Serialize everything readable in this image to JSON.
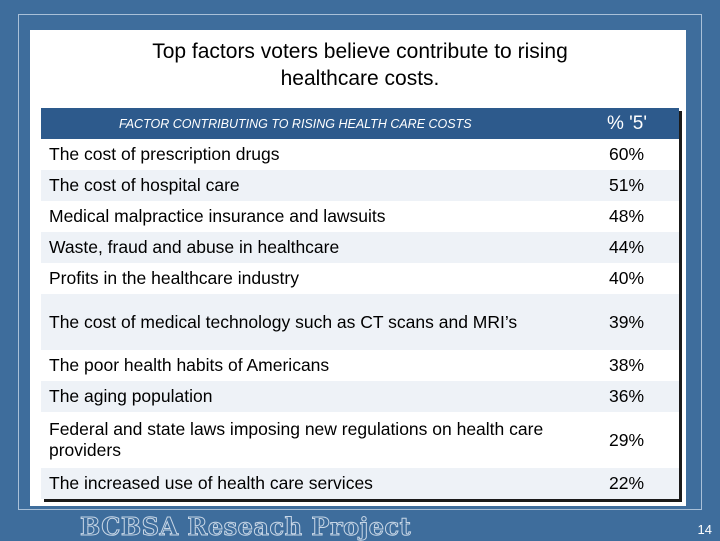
{
  "slide": {
    "title": "Top factors voters believe contribute to rising\nhealthcare costs.",
    "brand": "BCBSA Reseach Project",
    "page_number": "14"
  },
  "table": {
    "header": {
      "factor": "FACTOR CONTRIBUTING TO RISING HEALTH CARE COSTS",
      "percent": "% '5'"
    },
    "rows": [
      {
        "factor": "The cost of prescription drugs",
        "percent": "60%"
      },
      {
        "factor": "The cost of hospital care",
        "percent": "51%"
      },
      {
        "factor": "Medical malpractice insurance and lawsuits",
        "percent": "48%"
      },
      {
        "factor": "Waste, fraud and abuse in healthcare",
        "percent": "44%"
      },
      {
        "factor": "Profits in the healthcare industry",
        "percent": "40%"
      },
      {
        "factor": "The cost of medical technology such as CT scans and MRI’s",
        "percent": "39%"
      },
      {
        "factor": "The poor health habits of Americans",
        "percent": "38%"
      },
      {
        "factor": "The aging population",
        "percent": "36%"
      },
      {
        "factor": "Federal and state laws imposing new regulations on health care providers",
        "percent": "29%"
      },
      {
        "factor": "The increased use of health care services",
        "percent": "22%"
      }
    ]
  },
  "colors": {
    "background": "#3e6d9c",
    "header_fill": "#2d5a8c"
  }
}
